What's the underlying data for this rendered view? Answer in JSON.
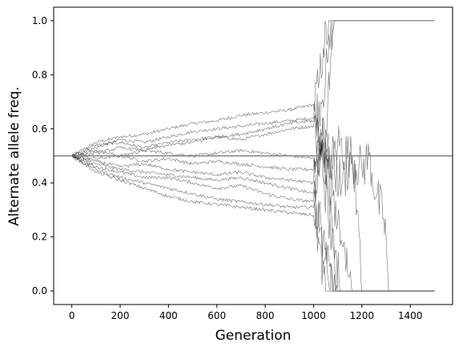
{
  "chart_data": {
    "type": "line",
    "title": "",
    "xlabel": "Generation",
    "ylabel": "Alternate allele freq.",
    "xlim": [
      -75,
      1575
    ],
    "ylim": [
      -0.05,
      1.05
    ],
    "xticks": [
      0,
      200,
      400,
      600,
      800,
      1000,
      1200,
      1400
    ],
    "xtick_labels": [
      "0",
      "200",
      "400",
      "600",
      "800",
      "1000",
      "1200",
      "1400"
    ],
    "yticks": [
      0.0,
      0.2,
      0.4,
      0.6,
      0.8,
      1.0
    ],
    "ytick_labels": [
      "0.0",
      "0.2",
      "0.4",
      "0.6",
      "0.8",
      "1.0"
    ],
    "grid": false,
    "legend": "none",
    "reference_line": {
      "y": 0.5,
      "color": "#808080"
    },
    "line_color": "#000000",
    "series": [
      {
        "values": [
          [
            0,
            0.5
          ],
          [
            100,
            0.55
          ],
          [
            200,
            0.57
          ],
          [
            300,
            0.58
          ],
          [
            400,
            0.6
          ],
          [
            500,
            0.62
          ],
          [
            600,
            0.63
          ],
          [
            700,
            0.65
          ],
          [
            800,
            0.66
          ],
          [
            900,
            0.67
          ],
          [
            1000,
            0.69
          ],
          [
            1020,
            0.75
          ],
          [
            1040,
            0.9
          ],
          [
            1070,
            1.0
          ],
          [
            1500,
            1.0
          ]
        ]
      },
      {
        "values": [
          [
            0,
            0.5
          ],
          [
            100,
            0.53
          ],
          [
            200,
            0.56
          ],
          [
            300,
            0.55
          ],
          [
            400,
            0.57
          ],
          [
            500,
            0.59
          ],
          [
            600,
            0.6
          ],
          [
            700,
            0.61
          ],
          [
            800,
            0.62
          ],
          [
            900,
            0.63
          ],
          [
            1000,
            0.64
          ],
          [
            1030,
            0.7
          ],
          [
            1060,
            0.85
          ],
          [
            1080,
            1.0
          ],
          [
            1500,
            1.0
          ]
        ]
      },
      {
        "values": [
          [
            0,
            0.5
          ],
          [
            100,
            0.54
          ],
          [
            200,
            0.55
          ],
          [
            300,
            0.53
          ],
          [
            400,
            0.55
          ],
          [
            500,
            0.56
          ],
          [
            600,
            0.57
          ],
          [
            700,
            0.56
          ],
          [
            800,
            0.58
          ],
          [
            900,
            0.6
          ],
          [
            1000,
            0.61
          ],
          [
            1020,
            0.55
          ],
          [
            1050,
            0.6
          ],
          [
            1070,
            0.85
          ],
          [
            1090,
            1.0
          ],
          [
            1500,
            1.0
          ]
        ]
      },
      {
        "values": [
          [
            0,
            0.5
          ],
          [
            100,
            0.52
          ],
          [
            200,
            0.5
          ],
          [
            300,
            0.52
          ],
          [
            400,
            0.51
          ],
          [
            500,
            0.5
          ],
          [
            600,
            0.51
          ],
          [
            700,
            0.52
          ],
          [
            800,
            0.51
          ],
          [
            900,
            0.5
          ],
          [
            1000,
            0.49
          ],
          [
            1030,
            0.6
          ],
          [
            1060,
            0.45
          ],
          [
            1100,
            0.55
          ],
          [
            1150,
            0.5
          ],
          [
            1200,
            0.45
          ],
          [
            1230,
            0.5
          ],
          [
            1260,
            0.35
          ],
          [
            1290,
            0.27
          ],
          [
            1300,
            0.2
          ],
          [
            1310,
            0.0
          ],
          [
            1500,
            0.0
          ]
        ]
      },
      {
        "values": [
          [
            0,
            0.5
          ],
          [
            100,
            0.49
          ],
          [
            200,
            0.5
          ],
          [
            300,
            0.48
          ],
          [
            400,
            0.49
          ],
          [
            500,
            0.47
          ],
          [
            600,
            0.48
          ],
          [
            700,
            0.47
          ],
          [
            800,
            0.46
          ],
          [
            900,
            0.45
          ],
          [
            1000,
            0.45
          ],
          [
            1040,
            0.55
          ],
          [
            1080,
            0.45
          ],
          [
            1120,
            0.4
          ],
          [
            1160,
            0.5
          ],
          [
            1180,
            0.3
          ],
          [
            1200,
            0.0
          ],
          [
            1500,
            0.0
          ]
        ]
      },
      {
        "values": [
          [
            0,
            0.5
          ],
          [
            100,
            0.47
          ],
          [
            200,
            0.45
          ],
          [
            300,
            0.44
          ],
          [
            400,
            0.43
          ],
          [
            500,
            0.42
          ],
          [
            600,
            0.41
          ],
          [
            700,
            0.42
          ],
          [
            800,
            0.4
          ],
          [
            900,
            0.38
          ],
          [
            1000,
            0.36
          ],
          [
            1030,
            0.5
          ],
          [
            1060,
            0.3
          ],
          [
            1100,
            0.0
          ],
          [
            1500,
            0.0
          ]
        ]
      },
      {
        "values": [
          [
            0,
            0.5
          ],
          [
            100,
            0.46
          ],
          [
            200,
            0.44
          ],
          [
            300,
            0.42
          ],
          [
            400,
            0.42
          ],
          [
            500,
            0.4
          ],
          [
            600,
            0.38
          ],
          [
            700,
            0.39
          ],
          [
            800,
            0.36
          ],
          [
            900,
            0.34
          ],
          [
            1000,
            0.33
          ],
          [
            1040,
            0.2
          ],
          [
            1070,
            0.1
          ],
          [
            1090,
            0.0
          ],
          [
            1500,
            0.0
          ]
        ]
      },
      {
        "values": [
          [
            0,
            0.5
          ],
          [
            100,
            0.45
          ],
          [
            200,
            0.42
          ],
          [
            300,
            0.4
          ],
          [
            400,
            0.38
          ],
          [
            500,
            0.36
          ],
          [
            600,
            0.34
          ],
          [
            700,
            0.33
          ],
          [
            800,
            0.32
          ],
          [
            900,
            0.31
          ],
          [
            1000,
            0.31
          ],
          [
            1030,
            0.25
          ],
          [
            1060,
            0.05
          ],
          [
            1080,
            0.0
          ],
          [
            1500,
            0.0
          ]
        ]
      },
      {
        "values": [
          [
            0,
            0.5
          ],
          [
            100,
            0.44
          ],
          [
            200,
            0.41
          ],
          [
            300,
            0.38
          ],
          [
            400,
            0.35
          ],
          [
            500,
            0.33
          ],
          [
            600,
            0.32
          ],
          [
            700,
            0.31
          ],
          [
            800,
            0.3
          ],
          [
            900,
            0.29
          ],
          [
            1000,
            0.28
          ],
          [
            1020,
            0.2
          ],
          [
            1050,
            0.0
          ],
          [
            1500,
            0.0
          ]
        ]
      },
      {
        "values": [
          [
            0,
            0.5
          ],
          [
            100,
            0.48
          ],
          [
            200,
            0.46
          ],
          [
            300,
            0.47
          ],
          [
            400,
            0.45
          ],
          [
            500,
            0.44
          ],
          [
            600,
            0.43
          ],
          [
            700,
            0.44
          ],
          [
            800,
            0.42
          ],
          [
            900,
            0.41
          ],
          [
            1000,
            0.4
          ],
          [
            1040,
            0.5
          ],
          [
            1080,
            0.35
          ],
          [
            1130,
            0.15
          ],
          [
            1160,
            0.0
          ],
          [
            1500,
            0.0
          ]
        ]
      },
      {
        "values": [
          [
            0,
            0.5
          ],
          [
            100,
            0.51
          ],
          [
            200,
            0.53
          ],
          [
            300,
            0.52
          ],
          [
            400,
            0.54
          ],
          [
            500,
            0.55
          ],
          [
            600,
            0.57
          ],
          [
            700,
            0.58
          ],
          [
            800,
            0.6
          ],
          [
            900,
            0.62
          ],
          [
            1000,
            0.63
          ],
          [
            1030,
            0.55
          ],
          [
            1060,
            0.4
          ],
          [
            1090,
            0.15
          ],
          [
            1110,
            0.0
          ],
          [
            1500,
            0.0
          ]
        ]
      }
    ]
  }
}
